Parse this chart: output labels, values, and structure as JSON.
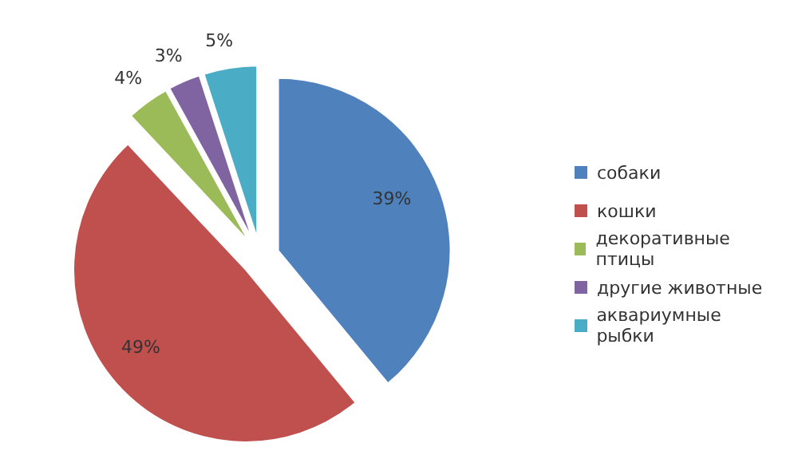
{
  "chart_data": {
    "type": "pie",
    "categories": [
      "собаки",
      "кошки",
      "декоративные птицы",
      "другие животные",
      "аквариумные рыбки"
    ],
    "values": [
      39,
      49,
      4,
      3,
      5
    ],
    "value_labels": [
      "39%",
      "49%",
      "4%",
      "3%",
      "5%"
    ],
    "colors": [
      "#4f81bd",
      "#c0504d",
      "#9bbb59",
      "#8064a2",
      "#4bacc6"
    ],
    "legend": "right"
  }
}
